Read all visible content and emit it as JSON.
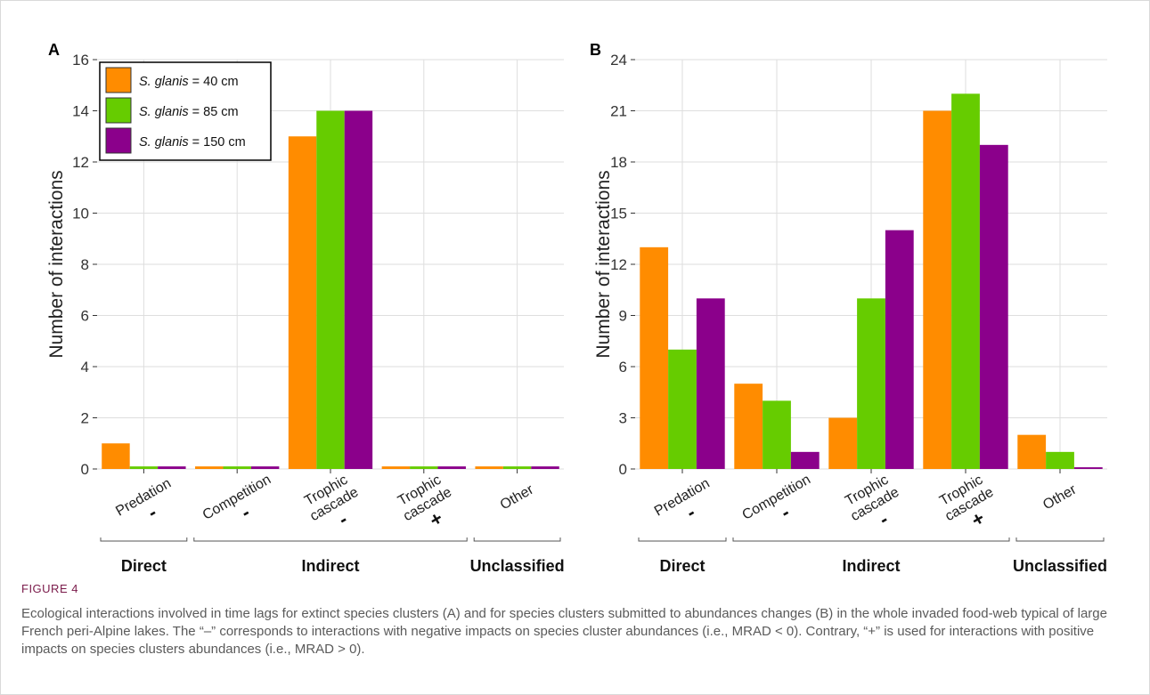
{
  "figure": {
    "label": "FIGURE 4",
    "caption": "Ecological interactions involved in time lags for extinct species clusters (A) and for species clusters submitted to abundances changes (B) in the whole invaded food-web typical of large French peri-Alpine lakes. The “–” corresponds to interactions with negative impacts on species cluster abundances (i.e., MRAD < 0). Contrary, “+” is used for interactions with positive impacts on species clusters abundances (i.e., MRAD > 0)."
  },
  "colors": {
    "series": [
      "#ff8c00",
      "#66cc00",
      "#8b008b"
    ],
    "grid": "#dedede",
    "axis": "#333333",
    "frame_border": "#d9d9d9"
  },
  "chart_data": [
    {
      "panel": "A",
      "type": "bar",
      "ylabel": "Number of interactions",
      "ylim": [
        0,
        16
      ],
      "yticks": [
        0,
        2,
        4,
        6,
        8,
        10,
        12,
        14,
        16
      ],
      "grid": true,
      "legend_position": "top-left",
      "categories": [
        "Predation",
        "Competition",
        "Trophic cascade",
        "Trophic cascade",
        "Other"
      ],
      "category_signs": [
        "-",
        "-",
        "-",
        "+",
        ""
      ],
      "groups": [
        {
          "label": "Direct",
          "span": [
            0,
            0
          ]
        },
        {
          "label": "Indirect",
          "span": [
            1,
            3
          ]
        },
        {
          "label": "Unclassified",
          "span": [
            4,
            4
          ]
        }
      ],
      "series": [
        {
          "name": "S. glanis = 40 cm",
          "values": [
            1,
            0.1,
            13,
            0.1,
            0.1
          ]
        },
        {
          "name": "S. glanis = 85 cm",
          "values": [
            0.1,
            0.1,
            14,
            0.1,
            0.1
          ]
        },
        {
          "name": "S. glanis = 150 cm",
          "values": [
            0.1,
            0.1,
            14,
            0.1,
            0.1
          ]
        }
      ]
    },
    {
      "panel": "B",
      "type": "bar",
      "ylabel": "Number of interactions",
      "ylim": [
        0,
        24
      ],
      "yticks": [
        0,
        3,
        6,
        9,
        12,
        15,
        18,
        21,
        24
      ],
      "grid": true,
      "categories": [
        "Predation",
        "Competition",
        "Trophic cascade",
        "Trophic cascade",
        "Other"
      ],
      "category_signs": [
        "-",
        "-",
        "-",
        "+",
        ""
      ],
      "groups": [
        {
          "label": "Direct",
          "span": [
            0,
            0
          ]
        },
        {
          "label": "Indirect",
          "span": [
            1,
            3
          ]
        },
        {
          "label": "Unclassified",
          "span": [
            4,
            4
          ]
        }
      ],
      "series": [
        {
          "name": "S. glanis = 40 cm",
          "values": [
            13,
            5,
            3,
            21,
            2
          ]
        },
        {
          "name": "S. glanis = 85 cm",
          "values": [
            7,
            4,
            10,
            22,
            1
          ]
        },
        {
          "name": "S. glanis = 150 cm",
          "values": [
            10,
            1,
            14,
            19,
            0.1
          ]
        }
      ]
    }
  ]
}
